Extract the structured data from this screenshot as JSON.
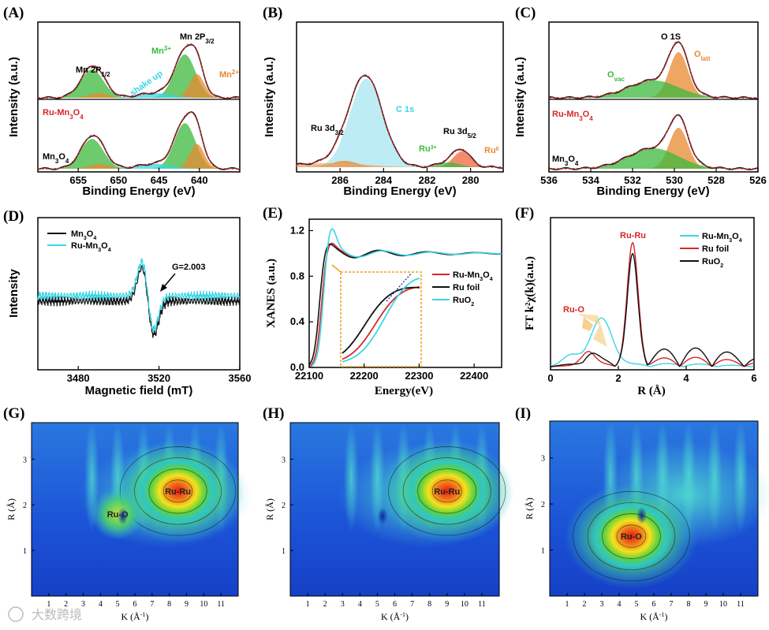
{
  "colors": {
    "fit_red": "#d62728",
    "green": "#3cb83c",
    "orange": "#e8892f",
    "cyan": "#38d6e6",
    "black": "#111111",
    "wt_bg": "#1f4fd1"
  },
  "watermark": "大数跨境",
  "chart_data": [
    {
      "id": "A",
      "panel_label": "(A)",
      "type": "line",
      "xlabel": "Binding Energy (eV)",
      "ylabel": "Intensity (a.u.)",
      "xlim": [
        660,
        635
      ],
      "xticks": [
        655,
        650,
        645,
        640
      ],
      "annotations": {
        "mn2p12": "Mn 2P",
        "mn2p12_sub": "1/2",
        "mn2p32": "Mn 2P",
        "mn2p32_sub": "3/2",
        "mn3": "Mn",
        "mn3_sup": "3+",
        "mn2": "Mn",
        "mn2_sup": "2+",
        "shake": "shake up",
        "sample_top": "Ru-Mn",
        "sample_top_sub": "3",
        "sample_top_tail": "O",
        "sample_top_tail_sub": "4",
        "sample_bot": "Mn",
        "sample_bot_sub": "3",
        "sample_bot_tail": "O",
        "sample_bot_tail_sub": "4"
      },
      "peaks": [
        {
          "name": "Mn3+ 2p3/2",
          "center": 641.8,
          "height": 0.75
        },
        {
          "name": "Mn2+ 2p3/2",
          "center": 640.5,
          "height": 0.45
        },
        {
          "name": "Mn3+ 2p1/2",
          "center": 653.3,
          "height": 0.5
        },
        {
          "name": "Mn2+ 2p1/2",
          "center": 652.5,
          "height": 0.08
        },
        {
          "name": "shake up",
          "center": 645.5,
          "height": 0.08
        }
      ]
    },
    {
      "id": "B",
      "panel_label": "(B)",
      "type": "line",
      "xlabel": "Binding Energy (eV)",
      "ylabel": "Intensity (a.u.)",
      "xlim": [
        288,
        278.5
      ],
      "xticks": [
        286,
        284,
        282,
        280
      ],
      "annotations": {
        "ru3d32": "Ru 3d",
        "ru3d32_sub": "3/2",
        "ru3d52": "Ru 3d",
        "ru3d52_sub": "5/2",
        "c1s": "C 1s",
        "ru3": "Ru",
        "ru3_sup": "3+",
        "ru0": "Ru",
        "ru0_sup": "0"
      },
      "peaks": [
        {
          "name": "C 1s",
          "center": 284.8,
          "height": 0.95
        },
        {
          "name": "Ru0 3d5/2",
          "center": 280.4,
          "height": 0.3
        },
        {
          "name": "Ru3+ 3d5/2",
          "center": 281.0,
          "height": 0.08
        },
        {
          "name": "Ru 3d3/2",
          "center": 285.5,
          "height": 0.1
        }
      ]
    },
    {
      "id": "C",
      "panel_label": "(C)",
      "type": "line",
      "xlabel": "Binding Energy (eV)",
      "ylabel": "Intensity (a.u.)",
      "xlim": [
        536,
        526
      ],
      "xticks": [
        536,
        534,
        532,
        530,
        528,
        526
      ],
      "annotations": {
        "o1s": "O 1S",
        "olatt": "O",
        "olatt_sub": "latt",
        "ovac": "O",
        "ovac_sub": "vac",
        "sample_top": "Ru-Mn",
        "sample_top_sub": "3",
        "sample_top_tail": "O",
        "sample_top_tail_sub": "4",
        "sample_bot": "Mn",
        "sample_bot_sub": "3",
        "sample_bot_tail": "O",
        "sample_bot_tail_sub": "4"
      },
      "peaks": [
        {
          "name": "O latt",
          "center": 529.8,
          "height": 0.65
        },
        {
          "name": "O vac",
          "center": 531.0,
          "height": 0.25
        }
      ]
    },
    {
      "id": "D",
      "panel_label": "(D)",
      "type": "line",
      "xlabel": "Magnetic field (mT)",
      "ylabel": "Intensity",
      "xlim": [
        3460,
        3560
      ],
      "xticks": [
        3480,
        3520,
        3560
      ],
      "annotation": "G=2.003",
      "series": [
        {
          "name": "Mn",
          "name_sub": "3",
          "name_tail": "O",
          "name_tail_sub": "4",
          "color": "#111111"
        },
        {
          "name": "Ru-Mn",
          "name_sub": "3",
          "name_tail": "O",
          "name_tail_sub": "4",
          "color": "#38d6e6"
        }
      ]
    },
    {
      "id": "E",
      "panel_label": "(E)",
      "type": "line",
      "xlabel": "Energy(eV)",
      "ylabel": "XANES (a.u.)",
      "xlim": [
        22100,
        22450
      ],
      "ylim": [
        0,
        1.3
      ],
      "xticks": [
        22100,
        22200,
        22300,
        22400
      ],
      "yticks": [
        0.0,
        0.4,
        0.8,
        1.2
      ],
      "series": [
        {
          "name": "Ru-Mn",
          "name_sub": "3",
          "name_tail": "O",
          "name_tail_sub": "4",
          "color": "#d62728"
        },
        {
          "name": "Ru foil",
          "color": "#111111"
        },
        {
          "name": "RuO",
          "name_sub": "2",
          "color": "#38d6e6"
        }
      ]
    },
    {
      "id": "F",
      "panel_label": "(F)",
      "type": "line",
      "xlabel": "R (Å)",
      "ylabel": "FT k²χ(k)(a.u.)",
      "xlim": [
        0,
        6
      ],
      "xticks": [
        0,
        2,
        4,
        6
      ],
      "annotations": {
        "ruru": "Ru-Ru",
        "ruo": "Ru-O"
      },
      "series": [
        {
          "name": "Ru-Mn",
          "name_sub": "3",
          "name_tail": "O",
          "name_tail_sub": "4",
          "color": "#38d6e6",
          "peak_R": 1.5
        },
        {
          "name": "Ru foil",
          "color": "#d62728",
          "peak_R": 2.4
        },
        {
          "name": "RuO",
          "name_sub": "2",
          "color": "#111111",
          "peak_R": 2.4
        }
      ]
    },
    {
      "id": "G",
      "panel_label": "(G)",
      "type": "heatmap",
      "xlabel": "K (Å",
      "xlabel_sup": "-1",
      "xlabel_tail": ")",
      "ylabel": "R (Å)",
      "xticks": [
        1,
        2,
        3,
        4,
        5,
        6,
        7,
        8,
        9,
        10,
        11
      ],
      "yticks": [
        1,
        2,
        3
      ],
      "hotspots": [
        {
          "label": "Ru-Ru",
          "k": 8.5,
          "R": 2.3,
          "intensity": 1.0
        },
        {
          "label": "Ru-O",
          "k": 5.0,
          "R": 1.8,
          "intensity": 0.45
        }
      ]
    },
    {
      "id": "H",
      "panel_label": "(H)",
      "type": "heatmap",
      "xlabel": "K (Å",
      "xlabel_sup": "-1",
      "xlabel_tail": ")",
      "ylabel": "R (Å)",
      "xticks": [
        1,
        2,
        3,
        4,
        5,
        6,
        7,
        8,
        9,
        10,
        11
      ],
      "yticks": [
        1,
        2,
        3
      ],
      "hotspots": [
        {
          "label": "Ru-Ru",
          "k": 9.0,
          "R": 2.3,
          "intensity": 1.0
        }
      ]
    },
    {
      "id": "I",
      "panel_label": "(I)",
      "type": "heatmap",
      "xlabel": "K (Å",
      "xlabel_sup": "-1",
      "xlabel_tail": ")",
      "ylabel": "R (Å)",
      "xticks": [
        1,
        2,
        3,
        4,
        5,
        6,
        7,
        8,
        9,
        10,
        11
      ],
      "yticks": [
        1,
        2,
        3
      ],
      "hotspots": [
        {
          "label": "Ru-O",
          "k": 4.7,
          "R": 1.3,
          "intensity": 1.0
        }
      ]
    }
  ]
}
